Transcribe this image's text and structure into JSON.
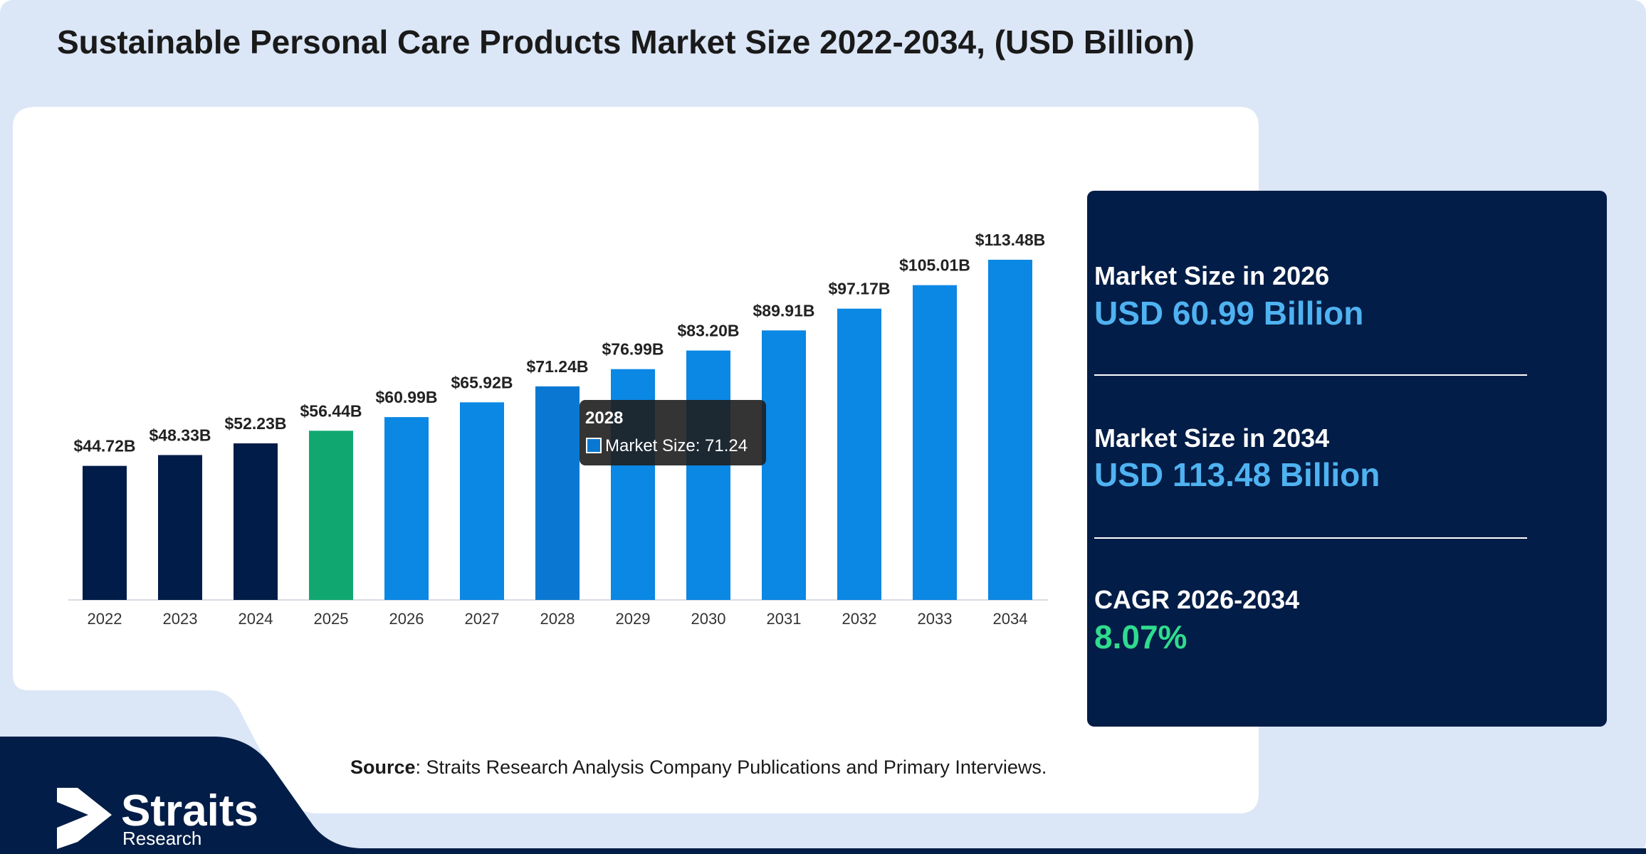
{
  "title": "Sustainable Personal Care Products Market Size 2022-2034, (USD Billion)",
  "colors": {
    "background": "#dbe6f7",
    "chart_panel": "#ffffff",
    "navy": "#021d47",
    "historical": "#011c48",
    "base_year": "#10a870",
    "forecast": "#0b87e4",
    "hovered": "#0a78d2",
    "stat_value": "#4fb2f1",
    "cagr": "#2fdc8e"
  },
  "chart_data": {
    "type": "bar",
    "categories": [
      "2022",
      "2023",
      "2024",
      "2025",
      "2026",
      "2027",
      "2028",
      "2029",
      "2030",
      "2031",
      "2032",
      "2033",
      "2034"
    ],
    "values": [
      44.72,
      48.33,
      52.23,
      56.44,
      60.99,
      65.92,
      71.24,
      76.99,
      83.2,
      89.91,
      97.17,
      105.01,
      113.48
    ],
    "value_labels": [
      "$44.72B",
      "$48.33B",
      "$52.23B",
      "$56.44B",
      "$60.99B",
      "$65.92B",
      "$71.24B",
      "$76.99B",
      "$83.20B",
      "$89.91B",
      "$97.17B",
      "$105.01B",
      "$113.48B"
    ],
    "bar_colors": [
      "#011c48",
      "#011c48",
      "#011c48",
      "#10a870",
      "#0b87e4",
      "#0b87e4",
      "#0a78d2",
      "#0b87e4",
      "#0b87e4",
      "#0b87e4",
      "#0b87e4",
      "#0b87e4",
      "#0b87e4"
    ],
    "ylim": [
      0,
      120
    ],
    "grid": false,
    "tooltip": {
      "category": "2028",
      "title": "2028",
      "line": "Market Size: 71.24"
    }
  },
  "stats": [
    {
      "label": "Market Size in 2026",
      "value": "USD 60.99 Billion"
    },
    {
      "label": "Market Size in 2034",
      "value": "USD 113.48 Billion"
    },
    {
      "label": "CAGR 2026-2034",
      "value": "8.07%"
    }
  ],
  "source": {
    "prefix": "Source",
    "text": ": Straits Research Analysis Company Publications and Primary Interviews."
  },
  "logo": {
    "name": "Straits",
    "sub": "Research"
  }
}
